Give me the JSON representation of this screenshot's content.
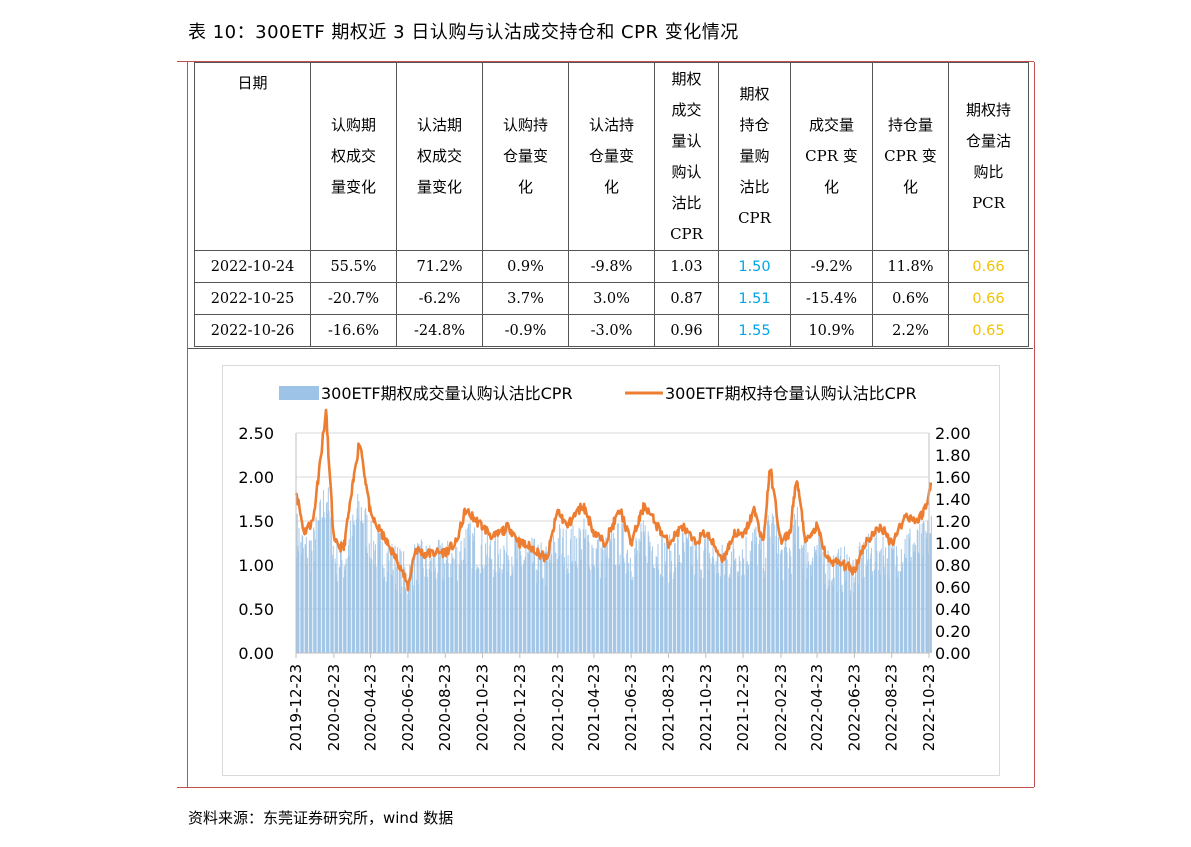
{
  "title": "表 10：300ETF 期权近 3 日认购与认沽成交持仓和 CPR 变化情况",
  "source": "资料来源：东莞证券研究所，wind 数据",
  "colors": {
    "frame_red": "#c0504d",
    "cpr_blue": "#00a6e8",
    "pcr_gold": "#f2c200",
    "bar": "#9dc3e6",
    "line": "#ed7d31",
    "grid": "#d9d9d9"
  },
  "table": {
    "headers": [
      "日期",
      "认购期\n权成交\n量变化",
      "认沽期\n权成交\n量变化",
      "认购持\n仓量变\n化",
      "认沽持\n仓量变\n化",
      "期权\n成交\n量认\n购认\n沽比\nCPR",
      "期权\n持仓\n量购\n沽比\nCPR",
      "成交量\nCPR 变\n化",
      "持仓量\nCPR 变\n化",
      "期权持\n仓量沽\n购比\nPCR"
    ],
    "rows": [
      [
        "2022-10-24",
        "55.5%",
        "71.2%",
        "0.9%",
        "-9.8%",
        "1.03",
        "1.50",
        "-9.2%",
        "11.8%",
        "0.66"
      ],
      [
        "2022-10-25",
        "-20.7%",
        "-6.2%",
        "3.7%",
        "3.0%",
        "0.87",
        "1.51",
        "-15.4%",
        "0.6%",
        "0.66"
      ],
      [
        "2022-10-26",
        "-16.6%",
        "-24.8%",
        "-0.9%",
        "-3.0%",
        "0.96",
        "1.55",
        "10.9%",
        "2.2%",
        "0.65"
      ]
    ]
  },
  "chart_data": {
    "type": "bar+line",
    "legend_position": "top",
    "series": [
      {
        "name": "300ETF期权成交量认购认沽比CPR",
        "type": "bar",
        "axis": "left",
        "note": "daily values, approx. 0.7–2.0"
      },
      {
        "name": "300ETF期权持仓量认购认沽比CPR",
        "type": "line",
        "axis": "right",
        "keypoints": [
          [
            "2019-12-23",
            1.48
          ],
          [
            "2020-01-05",
            1.1
          ],
          [
            "2020-01-20",
            1.2
          ],
          [
            "2020-02-10",
            2.2
          ],
          [
            "2020-02-23",
            1.0
          ],
          [
            "2020-03-10",
            0.95
          ],
          [
            "2020-04-05",
            1.95
          ],
          [
            "2020-04-23",
            1.25
          ],
          [
            "2020-05-20",
            1.0
          ],
          [
            "2020-06-10",
            0.8
          ],
          [
            "2020-06-23",
            0.6
          ],
          [
            "2020-07-05",
            0.95
          ],
          [
            "2020-07-20",
            0.9
          ],
          [
            "2020-08-23",
            0.92
          ],
          [
            "2020-09-10",
            1.0
          ],
          [
            "2020-09-25",
            1.3
          ],
          [
            "2020-10-23",
            1.15
          ],
          [
            "2020-11-10",
            1.05
          ],
          [
            "2020-12-05",
            1.15
          ],
          [
            "2020-12-23",
            1.0
          ],
          [
            "2021-01-15",
            0.95
          ],
          [
            "2021-02-05",
            0.85
          ],
          [
            "2021-02-23",
            1.3
          ],
          [
            "2021-03-10",
            1.15
          ],
          [
            "2021-04-05",
            1.35
          ],
          [
            "2021-04-23",
            1.1
          ],
          [
            "2021-05-10",
            1.0
          ],
          [
            "2021-06-05",
            1.3
          ],
          [
            "2021-06-23",
            1.0
          ],
          [
            "2021-07-15",
            1.35
          ],
          [
            "2021-08-05",
            1.15
          ],
          [
            "2021-08-23",
            1.0
          ],
          [
            "2021-09-15",
            1.15
          ],
          [
            "2021-10-05",
            1.0
          ],
          [
            "2021-10-23",
            1.1
          ],
          [
            "2021-11-20",
            0.85
          ],
          [
            "2021-12-10",
            1.1
          ],
          [
            "2021-12-23",
            1.05
          ],
          [
            "2022-01-10",
            1.3
          ],
          [
            "2022-01-25",
            1.0
          ],
          [
            "2022-02-05",
            1.7
          ],
          [
            "2022-02-23",
            1.0
          ],
          [
            "2022-03-10",
            1.1
          ],
          [
            "2022-03-20",
            1.6
          ],
          [
            "2022-04-05",
            1.0
          ],
          [
            "2022-04-23",
            1.15
          ],
          [
            "2022-05-10",
            0.85
          ],
          [
            "2022-06-05",
            0.8
          ],
          [
            "2022-06-23",
            0.75
          ],
          [
            "2022-07-10",
            1.0
          ],
          [
            "2022-08-05",
            1.15
          ],
          [
            "2022-08-23",
            1.0
          ],
          [
            "2022-09-15",
            1.25
          ],
          [
            "2022-10-05",
            1.2
          ],
          [
            "2022-10-15",
            1.3
          ],
          [
            "2022-10-20",
            1.35
          ],
          [
            "2022-10-26",
            1.55
          ]
        ]
      }
    ],
    "x_ticks": [
      "2019-12-23",
      "2020-02-23",
      "2020-04-23",
      "2020-06-23",
      "2020-08-23",
      "2020-10-23",
      "2020-12-23",
      "2021-02-23",
      "2021-04-23",
      "2021-06-23",
      "2021-08-23",
      "2021-10-23",
      "2021-12-23",
      "2022-02-23",
      "2022-04-23",
      "2022-06-23",
      "2022-08-23",
      "2022-10-23"
    ],
    "y_left": {
      "ticks": [
        "0.00",
        "0.50",
        "1.00",
        "1.50",
        "2.00",
        "2.50"
      ],
      "min": 0,
      "max": 2.5
    },
    "y_right": {
      "ticks": [
        "0.00",
        "0.20",
        "0.40",
        "0.60",
        "0.80",
        "1.00",
        "1.20",
        "1.40",
        "1.60",
        "1.80",
        "2.00"
      ],
      "min": 0,
      "max": 2.0
    },
    "grid": "horizontal"
  }
}
